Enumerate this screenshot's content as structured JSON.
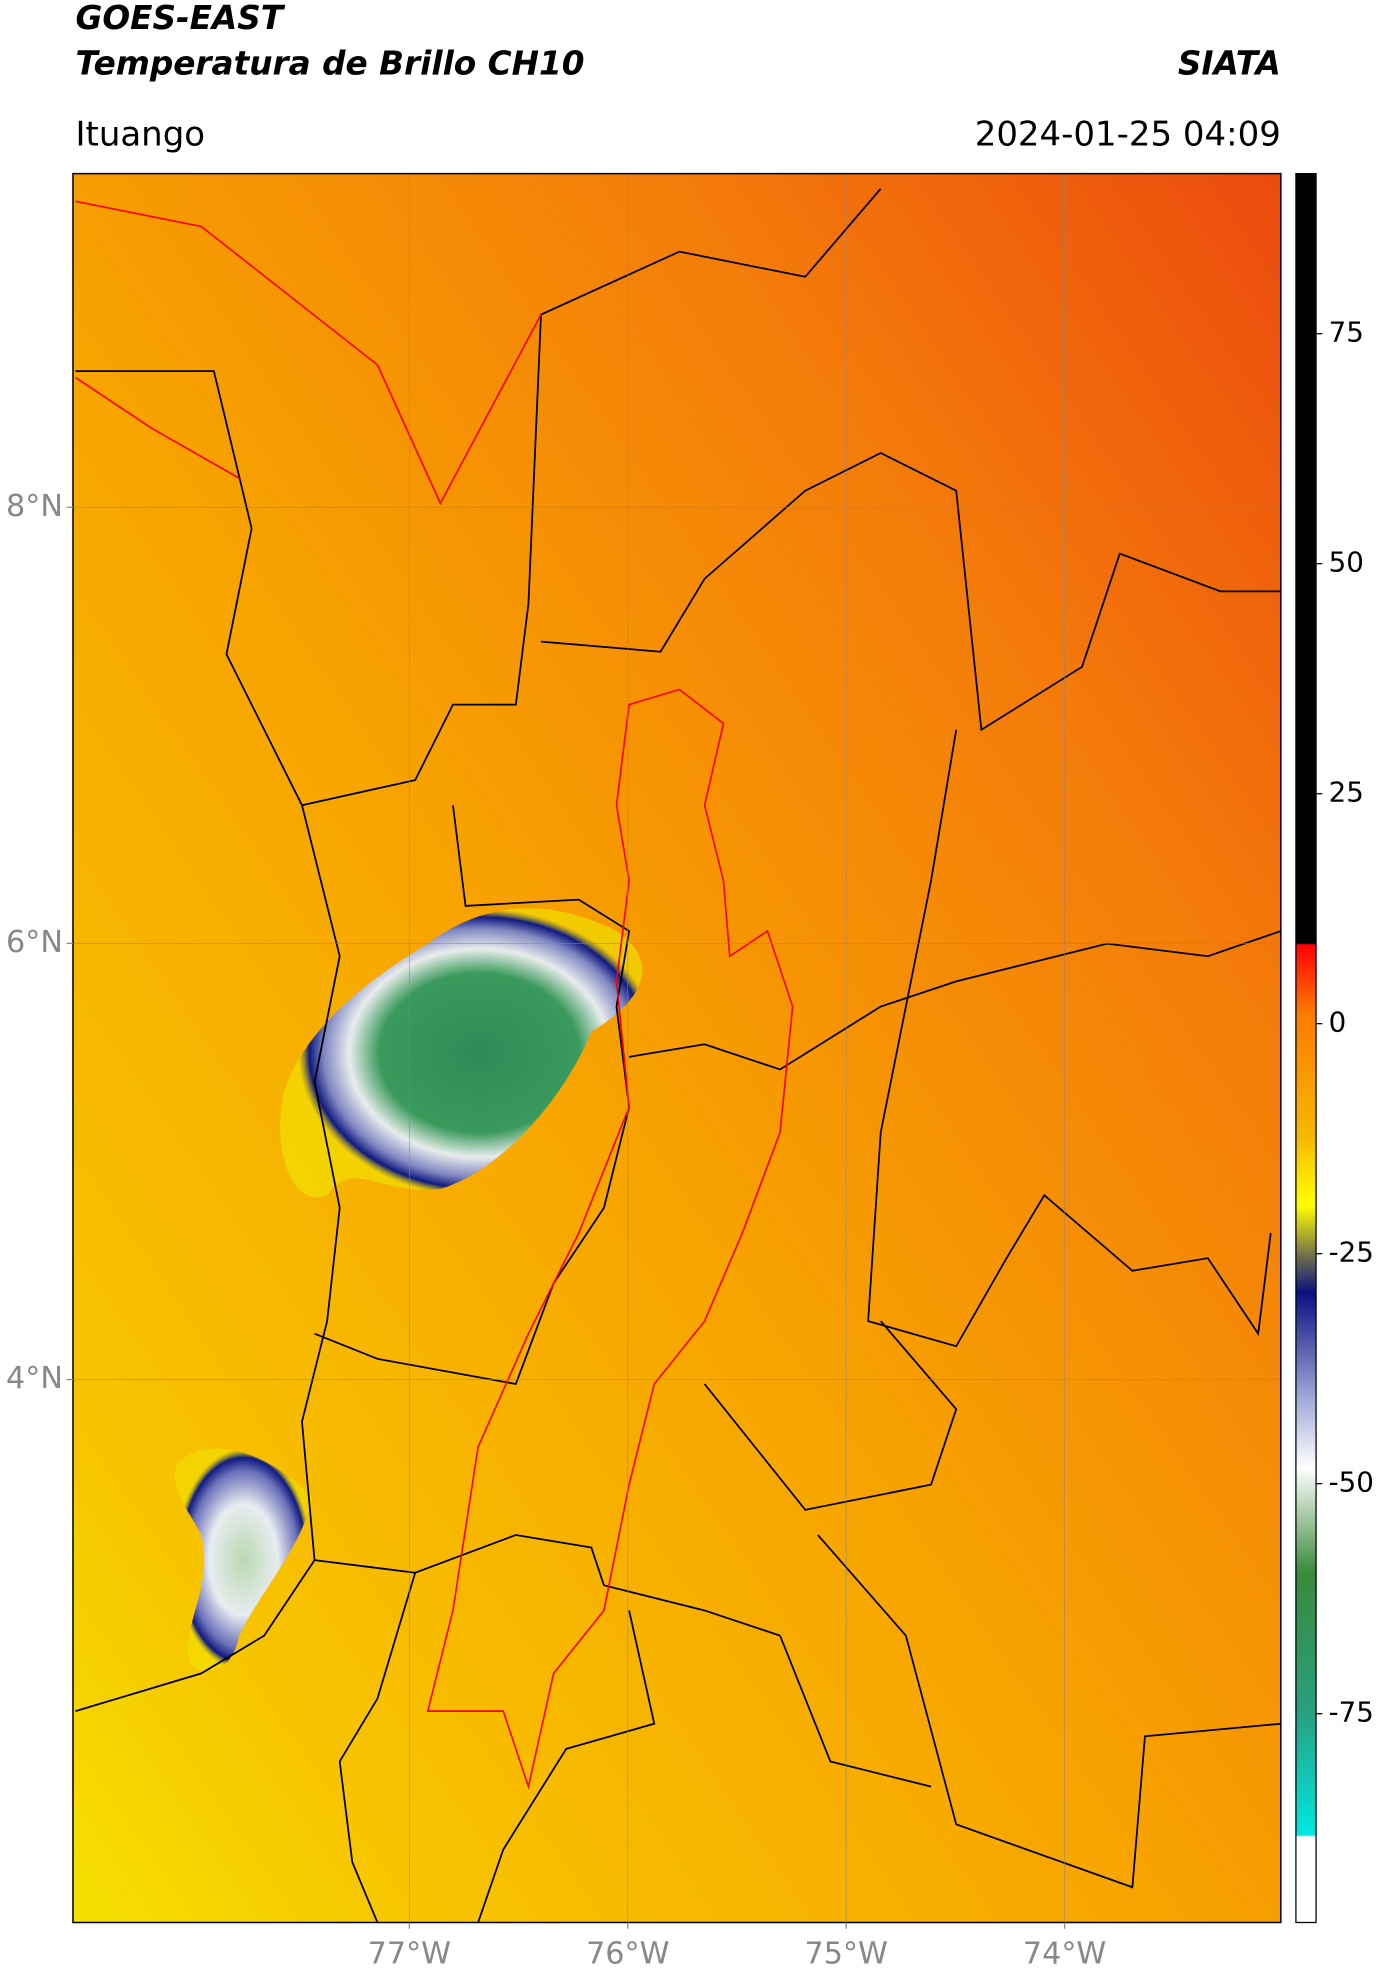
{
  "header": {
    "title": "GOES-EAST",
    "subtitle": "Temperatura de Brillo CH10",
    "organization": "SIATA",
    "location": "Ituango",
    "datetime": "2024-01-25 04:09"
  },
  "map": {
    "xlim": [
      -78.54,
      -73.01
    ],
    "ylim": [
      1.51,
      9.53
    ],
    "xticks": [
      {
        "value": -77,
        "label": "77°W"
      },
      {
        "value": -76,
        "label": "76°W"
      },
      {
        "value": -75,
        "label": "75°W"
      },
      {
        "value": -74,
        "label": "74°W"
      }
    ],
    "yticks": [
      {
        "value": 8,
        "label": "8°N"
      },
      {
        "value": 6,
        "label": "6°N"
      },
      {
        "value": 4,
        "label": "4°N"
      }
    ],
    "grid": true
  },
  "colorbar": {
    "lim": [
      -97.7,
      92.4
    ],
    "ticks": [
      75,
      50,
      25,
      0,
      -25,
      -50,
      -75
    ]
  }
}
